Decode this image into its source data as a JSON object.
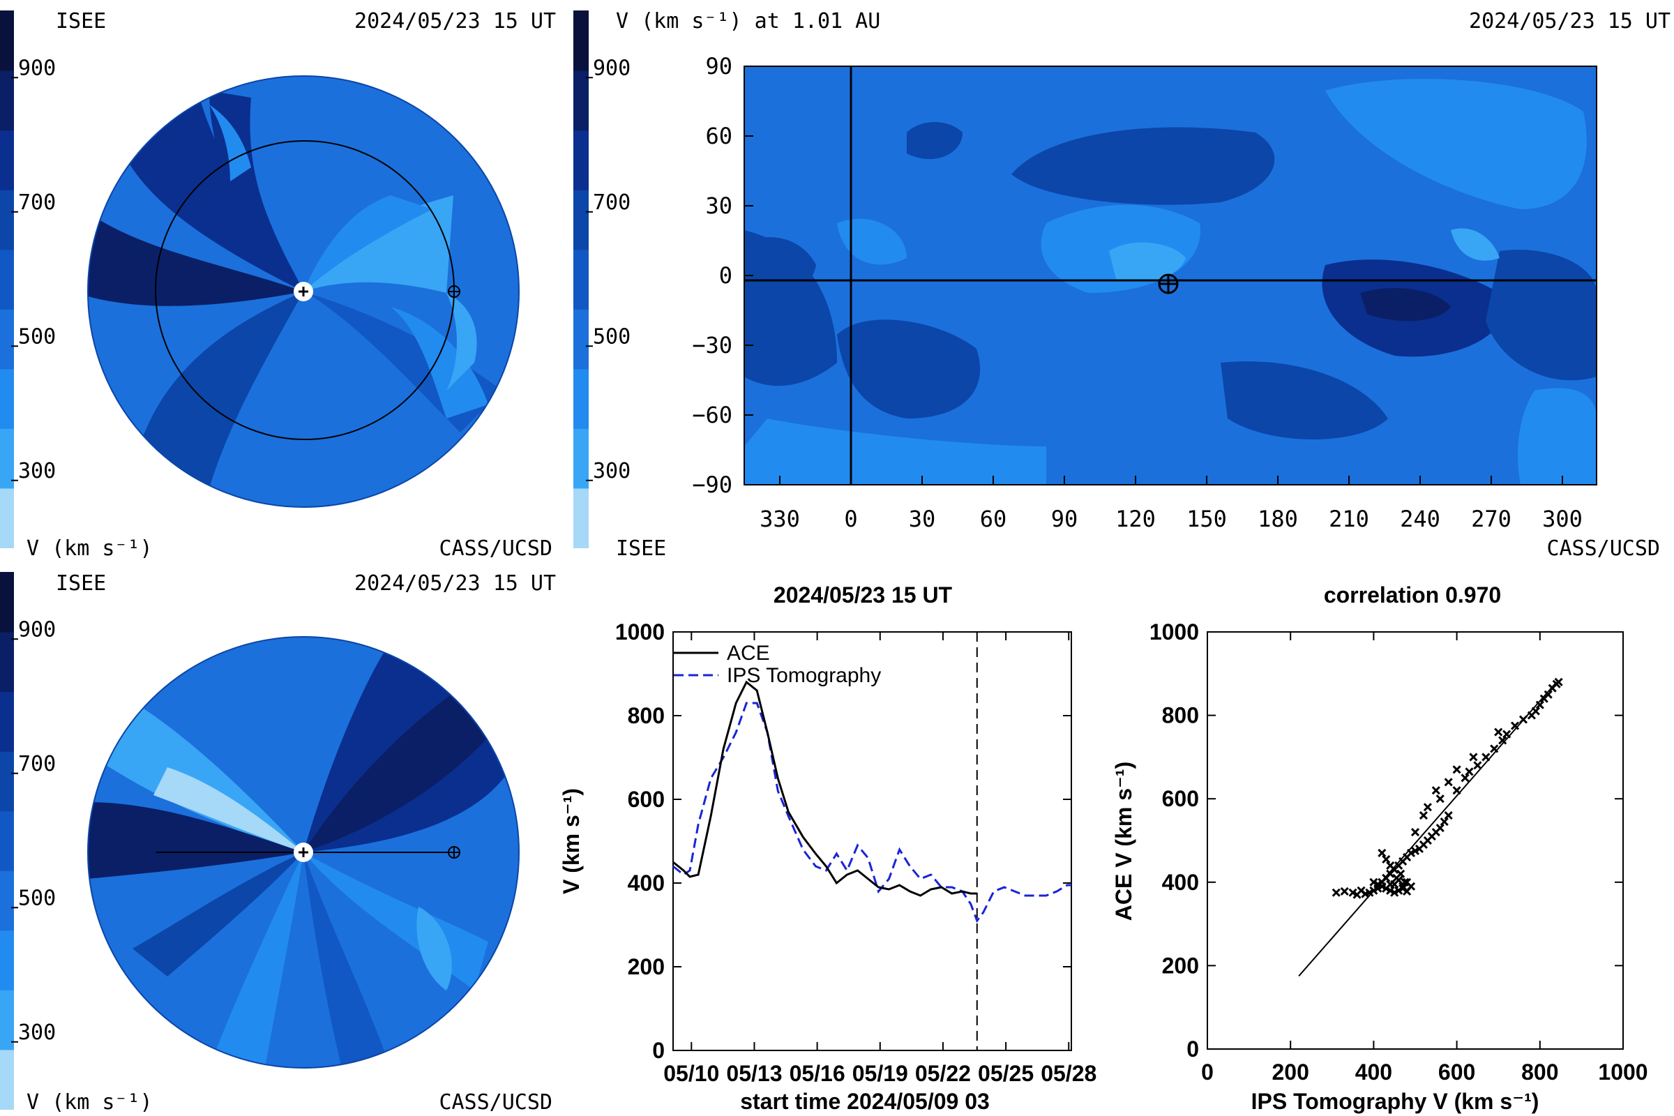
{
  "colors": {
    "scale": [
      "#a6d8f7",
      "#39a6f5",
      "#228bf0",
      "#1b70dc",
      "#1158c4",
      "#0b46a8",
      "#0a2f8f",
      "#0a1f66",
      "#08123c"
    ],
    "earth_line": "#000000",
    "ace": "#000000",
    "ips": "#1a24d6"
  },
  "colorbar": {
    "ticks": [
      "900",
      "700",
      "500",
      "300"
    ],
    "tick_values": [
      900,
      700,
      500,
      300
    ],
    "range": [
      200,
      1000
    ]
  },
  "panel_ecliptic": {
    "institute": "ISEE",
    "timestamp": "2024/05/23 15 UT",
    "unit_label": "V (km s⁻¹)",
    "credit": "CASS/UCSD"
  },
  "panel_map": {
    "title": "V (km s⁻¹) at 1.01 AU",
    "timestamp": "2024/05/23 15 UT",
    "institute": "ISEE",
    "credit": "CASS/UCSD",
    "lat_ticks": [
      "90",
      "60",
      "30",
      "0",
      "−30",
      "−60",
      "−90"
    ],
    "lon_ticks": [
      "330",
      "0",
      "30",
      "60",
      "90",
      "120",
      "150",
      "180",
      "210",
      "240",
      "270",
      "300"
    ],
    "earth_lon_marker": 135
  },
  "panel_meridional": {
    "institute": "ISEE",
    "timestamp": "2024/05/23 15 UT",
    "unit_label": "V (km s⁻¹)",
    "credit": "CASS/UCSD"
  },
  "chart_data": [
    {
      "type": "line",
      "title": "2024/05/23 15 UT",
      "xlabel": "start time 2024/05/09 03",
      "ylabel": "V (km s⁻¹)",
      "ylim": [
        0,
        1000
      ],
      "xlim": [
        0,
        19
      ],
      "x_tick_labels": [
        "05/10",
        "05/13",
        "05/16",
        "05/19",
        "05/22",
        "05/25",
        "05/28"
      ],
      "x_tick_values": [
        0.875,
        3.875,
        6.875,
        9.875,
        12.875,
        15.875,
        18.875
      ],
      "y_tick_labels": [
        "0",
        "200",
        "400",
        "600",
        "800",
        "1000"
      ],
      "y_tick_values": [
        0,
        200,
        400,
        600,
        800,
        1000
      ],
      "current_time": 14.5,
      "legend": [
        "ACE",
        "IPS Tomography"
      ],
      "series": [
        {
          "name": "ACE",
          "x": [
            0,
            0.5,
            0.8,
            1.2,
            1.8,
            2.4,
            3.0,
            3.5,
            4.0,
            4.5,
            5.0,
            5.5,
            6.2,
            6.8,
            7.3,
            7.8,
            8.3,
            8.8,
            9.3,
            9.8,
            10.3,
            10.8,
            11.3,
            11.8,
            12.3,
            12.8,
            13.3,
            13.8,
            14.2,
            14.5
          ],
          "y": [
            450,
            430,
            415,
            420,
            560,
            720,
            830,
            880,
            860,
            760,
            650,
            570,
            510,
            470,
            440,
            400,
            420,
            430,
            410,
            390,
            385,
            395,
            380,
            370,
            385,
            390,
            375,
            380,
            375,
            375
          ]
        },
        {
          "name": "IPS Tomography",
          "x": [
            0,
            0.5,
            0.8,
            1.2,
            1.8,
            2.4,
            3.0,
            3.5,
            4.0,
            4.5,
            5.0,
            5.5,
            6.2,
            6.8,
            7.3,
            7.8,
            8.3,
            8.8,
            9.3,
            9.8,
            10.3,
            10.8,
            11.3,
            11.8,
            12.3,
            12.8,
            13.3,
            13.8,
            14.2,
            14.5,
            14.8,
            15.3,
            15.8,
            16.3,
            16.8,
            17.3,
            17.8,
            18.3,
            18.8,
            19.0
          ],
          "y": [
            440,
            420,
            430,
            540,
            650,
            700,
            760,
            830,
            830,
            760,
            620,
            560,
            480,
            440,
            430,
            470,
            430,
            490,
            460,
            380,
            410,
            480,
            440,
            410,
            420,
            390,
            390,
            380,
            350,
            310,
            330,
            380,
            390,
            380,
            370,
            370,
            370,
            380,
            395,
            395
          ]
        }
      ]
    },
    {
      "type": "scatter",
      "title": "correlation 0.970",
      "xlabel": "IPS Tomography V (km s⁻¹)",
      "ylabel": "ACE V (km s⁻¹)",
      "xlim": [
        0,
        1000
      ],
      "ylim": [
        0,
        1000
      ],
      "x_tick_labels": [
        "0",
        "200",
        "400",
        "600",
        "800",
        "1000"
      ],
      "y_tick_labels": [
        "0",
        "200",
        "400",
        "600",
        "800",
        "1000"
      ],
      "tick_values": [
        0,
        200,
        400,
        600,
        800,
        1000
      ],
      "fit_line": [
        [
          220,
          175
        ],
        [
          840,
          880
        ]
      ],
      "points": [
        [
          310,
          375
        ],
        [
          330,
          378
        ],
        [
          350,
          375
        ],
        [
          370,
          380
        ],
        [
          390,
          375
        ],
        [
          400,
          380
        ],
        [
          410,
          385
        ],
        [
          420,
          390
        ],
        [
          430,
          385
        ],
        [
          440,
          380
        ],
        [
          450,
          375
        ],
        [
          460,
          380
        ],
        [
          470,
          385
        ],
        [
          480,
          378
        ],
        [
          420,
          400
        ],
        [
          430,
          410
        ],
        [
          440,
          420
        ],
        [
          450,
          430
        ],
        [
          460,
          440
        ],
        [
          470,
          450
        ],
        [
          480,
          460
        ],
        [
          490,
          470
        ],
        [
          500,
          475
        ],
        [
          510,
          480
        ],
        [
          520,
          490
        ],
        [
          530,
          500
        ],
        [
          540,
          510
        ],
        [
          550,
          520
        ],
        [
          560,
          530
        ],
        [
          570,
          545
        ],
        [
          420,
          470
        ],
        [
          430,
          455
        ],
        [
          440,
          440
        ],
        [
          450,
          430
        ],
        [
          400,
          400
        ],
        [
          410,
          395
        ],
        [
          450,
          395
        ],
        [
          460,
          405
        ],
        [
          470,
          390
        ],
        [
          480,
          400
        ],
        [
          530,
          580
        ],
        [
          560,
          600
        ],
        [
          580,
          560
        ],
        [
          600,
          620
        ],
        [
          620,
          650
        ],
        [
          630,
          665
        ],
        [
          650,
          680
        ],
        [
          670,
          700
        ],
        [
          690,
          720
        ],
        [
          710,
          740
        ],
        [
          720,
          755
        ],
        [
          740,
          775
        ],
        [
          760,
          790
        ],
        [
          780,
          800
        ],
        [
          790,
          810
        ],
        [
          800,
          825
        ],
        [
          810,
          840
        ],
        [
          820,
          850
        ],
        [
          830,
          865
        ],
        [
          840,
          875
        ],
        [
          845,
          880
        ],
        [
          580,
          640
        ],
        [
          600,
          670
        ],
        [
          640,
          700
        ],
        [
          700,
          760
        ],
        [
          550,
          620
        ],
        [
          520,
          560
        ],
        [
          500,
          520
        ],
        [
          360,
          370
        ],
        [
          380,
          372
        ],
        [
          440,
          395
        ],
        [
          455,
          410
        ],
        [
          465,
          420
        ],
        [
          475,
          400
        ],
        [
          490,
          390
        ]
      ]
    }
  ]
}
